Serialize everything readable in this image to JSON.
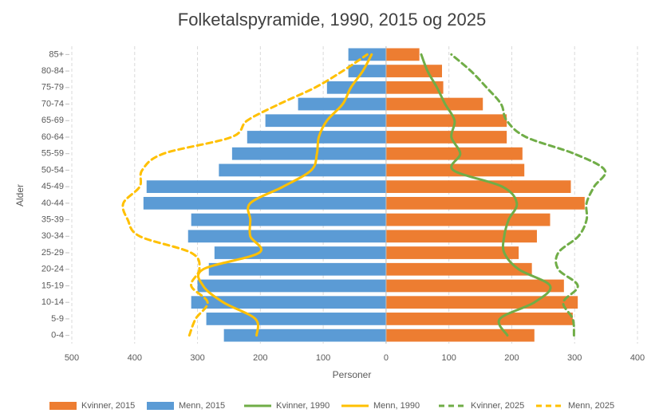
{
  "chart_data": {
    "type": "pyramid",
    "title": "Folketalspyramide, 1990, 2015 og 2025",
    "x_label": "Personer",
    "y_label": "Alder",
    "categories": [
      "0-4",
      "5-9",
      "10-14",
      "15-19",
      "20-24",
      "25-29",
      "30-34",
      "35-39",
      "40-44",
      "45-49",
      "50-54",
      "55-59",
      "60-64",
      "65-69",
      "70-74",
      "75-79",
      "80-84",
      "85+"
    ],
    "xlim": [
      -500,
      400
    ],
    "xticks": [
      {
        "value": -500,
        "label": "500"
      },
      {
        "value": -400,
        "label": "400"
      },
      {
        "value": -300,
        "label": "300"
      },
      {
        "value": -200,
        "label": "200"
      },
      {
        "value": -100,
        "label": "100"
      },
      0,
      100,
      200,
      300,
      400
    ],
    "grid": true,
    "legend": "bottom",
    "series": [
      {
        "name": "Kvinner, 2015",
        "type": "bar",
        "color": "#ed7d31",
        "values": [
          236,
          297,
          305,
          283,
          232,
          211,
          240,
          261,
          316,
          294,
          220,
          217,
          192,
          192,
          154,
          91,
          89,
          53
        ]
      },
      {
        "name": "Menn, 2015",
        "type": "bar",
        "color": "#5b9bd5",
        "values": [
          -258,
          -286,
          -310,
          -300,
          -282,
          -273,
          -315,
          -310,
          -386,
          -381,
          -266,
          -245,
          -221,
          -192,
          -140,
          -94,
          -60,
          -60
        ]
      },
      {
        "name": "Kvinner, 1990",
        "type": "line",
        "dashed": false,
        "color": "#70ad47",
        "values": [
          193,
          181,
          236,
          261,
          211,
          188,
          188,
          195,
          208,
          185,
          107,
          118,
          104,
          109,
          94,
          81,
          66,
          56
        ]
      },
      {
        "name": "Menn, 1990",
        "type": "line",
        "dashed": false,
        "color": "#ffc000",
        "values": [
          -206,
          -208,
          -259,
          -291,
          -291,
          -202,
          -216,
          -216,
          -216,
          -164,
          -119,
          -110,
          -107,
          -94,
          -69,
          -56,
          -37,
          -23
        ]
      },
      {
        "name": "Kvinner, 2025",
        "type": "line",
        "dashed": true,
        "color": "#70ad47",
        "values": [
          299,
          297,
          282,
          305,
          274,
          274,
          306,
          319,
          319,
          331,
          348,
          299,
          223,
          192,
          183,
          160,
          135,
          104
        ]
      },
      {
        "name": "Menn, 2025",
        "type": "line",
        "dashed": true,
        "color": "#ffc000",
        "values": [
          -313,
          -303,
          -284,
          -310,
          -297,
          -310,
          -392,
          -411,
          -418,
          -392,
          -388,
          -354,
          -246,
          -221,
          -170,
          -113,
          -69,
          -30
        ]
      }
    ]
  }
}
